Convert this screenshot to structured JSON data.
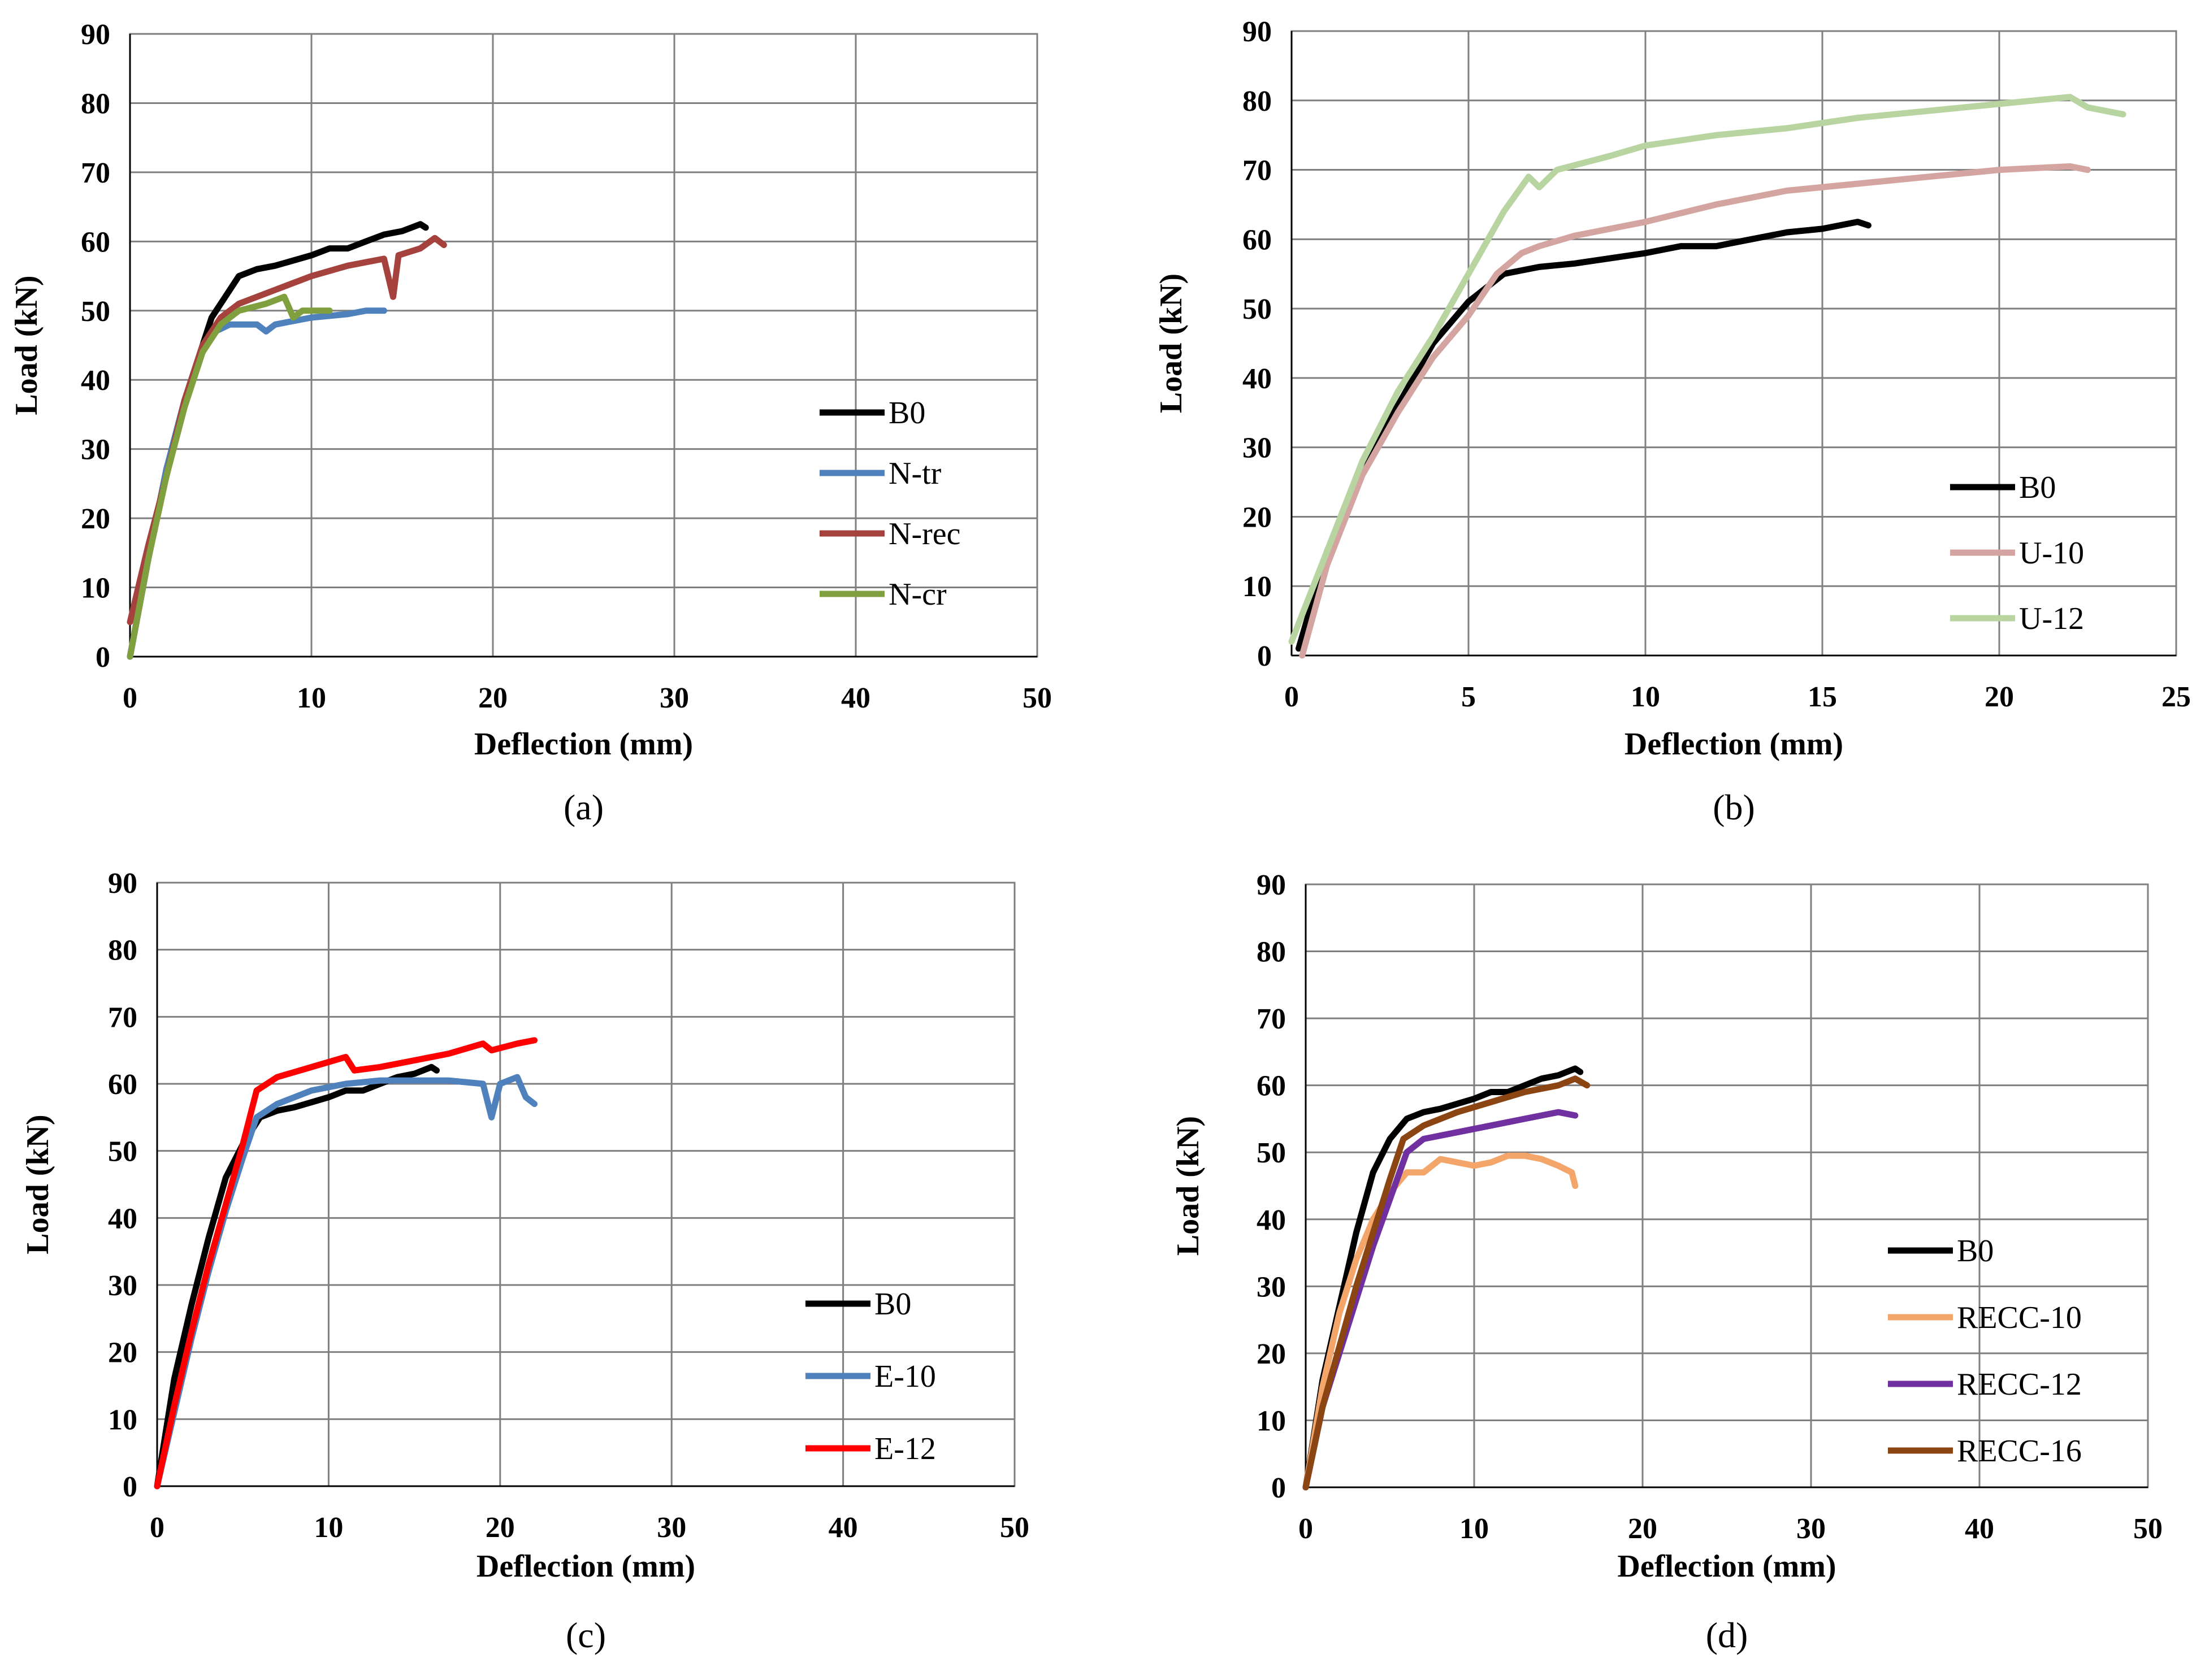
{
  "colors": {
    "black": "#000000",
    "blue": "#4F81BD",
    "darkred": "#A5423E",
    "green": "#80A040",
    "pink": "#D4A5A0",
    "lightgreen": "#B8D4A0",
    "red": "#FF0000",
    "orange": "#F4A56A",
    "purple": "#7030A0",
    "brown": "#8B4513",
    "grid": "#7F7F7F"
  },
  "chart_data": [
    {
      "type": "line",
      "panel_label": "(a)",
      "xlabel": "Deflection (mm)",
      "ylabel": "Load (kN)",
      "xlim": [
        0,
        50
      ],
      "ylim": [
        0,
        90
      ],
      "xticks": [
        "0",
        "10",
        "20",
        "30",
        "40",
        "50"
      ],
      "yticks": [
        "0",
        "10",
        "20",
        "30",
        "40",
        "50",
        "60",
        "70",
        "80",
        "90"
      ],
      "legend_position": "right",
      "series": [
        {
          "name": "B0",
          "color": "#000000",
          "points": [
            [
              0,
              0
            ],
            [
              1,
              14
            ],
            [
              2,
              27
            ],
            [
              3,
              37
            ],
            [
              4,
              45
            ],
            [
              4.5,
              49
            ],
            [
              5,
              51
            ],
            [
              6,
              55
            ],
            [
              7,
              56
            ],
            [
              8,
              56.5
            ],
            [
              10,
              58
            ],
            [
              11,
              59
            ],
            [
              12,
              59
            ],
            [
              13,
              60
            ],
            [
              14,
              61
            ],
            [
              15,
              61.5
            ],
            [
              16,
              62.5
            ],
            [
              16.3,
              62
            ]
          ]
        },
        {
          "name": "N-tr",
          "color": "#4F81BD",
          "points": [
            [
              0,
              0
            ],
            [
              1,
              14
            ],
            [
              2,
              27
            ],
            [
              3,
              37
            ],
            [
              4,
              44
            ],
            [
              4.7,
              47
            ],
            [
              5.5,
              48
            ],
            [
              7,
              48
            ],
            [
              7.5,
              47
            ],
            [
              8,
              48
            ],
            [
              9,
              48.5
            ],
            [
              10,
              49
            ],
            [
              12,
              49.5
            ],
            [
              13,
              50
            ],
            [
              14,
              50
            ]
          ]
        },
        {
          "name": "N-rec",
          "color": "#A5423E",
          "points": [
            [
              0,
              5
            ],
            [
              1,
              16
            ],
            [
              2,
              26
            ],
            [
              3,
              37
            ],
            [
              4,
              45
            ],
            [
              5,
              49
            ],
            [
              6,
              51
            ],
            [
              8,
              53
            ],
            [
              10,
              55
            ],
            [
              12,
              56.5
            ],
            [
              14,
              57.5
            ],
            [
              14.5,
              52
            ],
            [
              14.8,
              58
            ],
            [
              16,
              59
            ],
            [
              16.8,
              60.5
            ],
            [
              17.3,
              59.5
            ]
          ]
        },
        {
          "name": "N-cr",
          "color": "#80A040",
          "points": [
            [
              0,
              0
            ],
            [
              1,
              14
            ],
            [
              2,
              26
            ],
            [
              3,
              36
            ],
            [
              4,
              44
            ],
            [
              5,
              48
            ],
            [
              6,
              50
            ],
            [
              7.5,
              51
            ],
            [
              8.5,
              52
            ],
            [
              9,
              49
            ],
            [
              9.5,
              50
            ],
            [
              10.5,
              50
            ],
            [
              11,
              50
            ]
          ]
        }
      ]
    },
    {
      "type": "line",
      "panel_label": "(b)",
      "xlabel": "Deflection (mm)",
      "ylabel": "Load (kN)",
      "xlim": [
        0,
        25
      ],
      "ylim": [
        0,
        90
      ],
      "xticks": [
        "0",
        "5",
        "10",
        "15",
        "20",
        "25"
      ],
      "yticks": [
        "0",
        "10",
        "20",
        "30",
        "40",
        "50",
        "60",
        "70",
        "80",
        "90"
      ],
      "legend_position": "right",
      "series": [
        {
          "name": "B0",
          "color": "#000000",
          "points": [
            [
              0.2,
              1
            ],
            [
              1,
              15
            ],
            [
              2,
              27
            ],
            [
              3,
              36
            ],
            [
              4,
              45
            ],
            [
              5,
              51
            ],
            [
              6,
              55
            ],
            [
              7,
              56
            ],
            [
              8,
              56.5
            ],
            [
              10,
              58
            ],
            [
              11,
              59
            ],
            [
              12,
              59
            ],
            [
              13,
              60
            ],
            [
              14,
              61
            ],
            [
              15,
              61.5
            ],
            [
              16,
              62.5
            ],
            [
              16.3,
              62
            ]
          ]
        },
        {
          "name": "U-10",
          "color": "#D4A5A0",
          "points": [
            [
              0.3,
              0
            ],
            [
              1,
              13
            ],
            [
              2,
              26
            ],
            [
              3,
              35
            ],
            [
              4,
              43
            ],
            [
              5,
              49
            ],
            [
              5.8,
              55
            ],
            [
              6.5,
              58
            ],
            [
              7,
              59
            ],
            [
              8,
              60.5
            ],
            [
              10,
              62.5
            ],
            [
              12,
              65
            ],
            [
              14,
              67
            ],
            [
              16,
              68
            ],
            [
              18,
              69
            ],
            [
              20,
              70
            ],
            [
              22,
              70.5
            ],
            [
              22.5,
              70
            ]
          ]
        },
        {
          "name": "U-12",
          "color": "#B8D4A0",
          "points": [
            [
              0,
              2
            ],
            [
              1,
              15
            ],
            [
              2,
              28
            ],
            [
              3,
              38
            ],
            [
              4,
              46
            ],
            [
              5,
              55
            ],
            [
              6,
              64
            ],
            [
              6.7,
              69
            ],
            [
              7,
              67.5
            ],
            [
              7.5,
              70
            ],
            [
              9,
              72
            ],
            [
              10,
              73.5
            ],
            [
              12,
              75
            ],
            [
              14,
              76
            ],
            [
              16,
              77.5
            ],
            [
              18,
              78.5
            ],
            [
              20,
              79.5
            ],
            [
              22,
              80.5
            ],
            [
              22.5,
              79
            ],
            [
              23.5,
              78
            ]
          ]
        }
      ]
    },
    {
      "type": "line",
      "panel_label": "(c)",
      "xlabel": "Deflection (mm)",
      "ylabel": "Load (kN)",
      "xlim": [
        0,
        50
      ],
      "ylim": [
        0,
        90
      ],
      "xticks": [
        "0",
        "10",
        "20",
        "30",
        "40",
        "50"
      ],
      "yticks": [
        "0",
        "10",
        "20",
        "30",
        "40",
        "50",
        "60",
        "70",
        "80",
        "90"
      ],
      "legend_position": "right",
      "series": [
        {
          "name": "B0",
          "color": "#000000",
          "points": [
            [
              0,
              0
            ],
            [
              1,
              16
            ],
            [
              2,
              27
            ],
            [
              3,
              37
            ],
            [
              4,
              46
            ],
            [
              5,
              51
            ],
            [
              6,
              55
            ],
            [
              7,
              56
            ],
            [
              8,
              56.5
            ],
            [
              10,
              58
            ],
            [
              11,
              59
            ],
            [
              12,
              59
            ],
            [
              13,
              60
            ],
            [
              14,
              61
            ],
            [
              15,
              61.5
            ],
            [
              16,
              62.5
            ],
            [
              16.3,
              62
            ]
          ]
        },
        {
          "name": "E-10",
          "color": "#4F81BD",
          "points": [
            [
              0,
              0
            ],
            [
              1,
              11
            ],
            [
              2,
              22
            ],
            [
              3,
              32
            ],
            [
              4,
              41
            ],
            [
              5,
              49
            ],
            [
              5.8,
              55
            ],
            [
              7,
              57
            ],
            [
              9,
              59
            ],
            [
              11,
              60
            ],
            [
              13,
              60.5
            ],
            [
              15,
              60.5
            ],
            [
              17,
              60.5
            ],
            [
              19,
              60
            ],
            [
              19.5,
              55
            ],
            [
              20,
              60
            ],
            [
              21,
              61
            ],
            [
              21.5,
              58
            ],
            [
              22,
              57
            ]
          ]
        },
        {
          "name": "E-12",
          "color": "#FF0000",
          "points": [
            [
              0,
              0
            ],
            [
              1,
              12
            ],
            [
              2,
              23
            ],
            [
              3,
              33
            ],
            [
              4,
              42
            ],
            [
              5,
              51
            ],
            [
              5.8,
              59
            ],
            [
              7,
              61
            ],
            [
              9,
              62.5
            ],
            [
              11,
              64
            ],
            [
              11.5,
              62
            ],
            [
              13,
              62.5
            ],
            [
              15,
              63.5
            ],
            [
              17,
              64.5
            ],
            [
              19,
              66
            ],
            [
              19.5,
              65
            ],
            [
              21,
              66
            ],
            [
              22,
              66.5
            ]
          ]
        }
      ]
    },
    {
      "type": "line",
      "panel_label": "(d)",
      "xlabel": "Deflection (mm)",
      "ylabel": "Load (kN)",
      "xlim": [
        0,
        50
      ],
      "ylim": [
        0,
        90
      ],
      "xticks": [
        "0",
        "10",
        "20",
        "30",
        "40",
        "50"
      ],
      "yticks": [
        "0",
        "10",
        "20",
        "30",
        "40",
        "50",
        "60",
        "70",
        "80",
        "90"
      ],
      "legend_position": "right",
      "series": [
        {
          "name": "B0",
          "color": "#000000",
          "points": [
            [
              0,
              0
            ],
            [
              1,
              16
            ],
            [
              2,
              27
            ],
            [
              3,
              38
            ],
            [
              4,
              47
            ],
            [
              5,
              52
            ],
            [
              6,
              55
            ],
            [
              7,
              56
            ],
            [
              8,
              56.5
            ],
            [
              10,
              58
            ],
            [
              11,
              59
            ],
            [
              12,
              59
            ],
            [
              13,
              60
            ],
            [
              14,
              61
            ],
            [
              15,
              61.5
            ],
            [
              16,
              62.5
            ],
            [
              16.3,
              62
            ]
          ]
        },
        {
          "name": "RECC-10",
          "color": "#F4A56A",
          "points": [
            [
              0,
              0
            ],
            [
              1,
              15
            ],
            [
              2,
              26
            ],
            [
              3,
              34
            ],
            [
              4,
              40
            ],
            [
              5,
              44
            ],
            [
              6,
              47
            ],
            [
              7,
              47
            ],
            [
              8,
              49
            ],
            [
              9,
              48.5
            ],
            [
              10,
              48
            ],
            [
              11,
              48.5
            ],
            [
              12,
              49.5
            ],
            [
              13,
              49.5
            ],
            [
              14,
              49
            ],
            [
              15,
              48
            ],
            [
              15.8,
              47
            ],
            [
              16,
              45
            ]
          ]
        },
        {
          "name": "RECC-12",
          "color": "#7030A0",
          "points": [
            [
              0,
              0
            ],
            [
              1,
              12
            ],
            [
              2,
              20
            ],
            [
              3,
              28
            ],
            [
              4,
              36
            ],
            [
              5,
              43
            ],
            [
              6,
              50
            ],
            [
              7,
              52
            ],
            [
              9,
              53
            ],
            [
              11,
              54
            ],
            [
              13,
              55
            ],
            [
              15,
              56
            ],
            [
              16,
              55.5
            ]
          ]
        },
        {
          "name": "RECC-16",
          "color": "#8B4513",
          "points": [
            [
              0,
              0
            ],
            [
              1,
              12
            ],
            [
              2,
              21
            ],
            [
              3,
              30
            ],
            [
              4,
              38
            ],
            [
              5,
              46
            ],
            [
              5.8,
              52
            ],
            [
              7,
              54
            ],
            [
              9,
              56
            ],
            [
              11,
              57.5
            ],
            [
              13,
              59
            ],
            [
              15,
              60
            ],
            [
              16,
              61
            ],
            [
              16.7,
              60
            ]
          ]
        }
      ]
    }
  ]
}
